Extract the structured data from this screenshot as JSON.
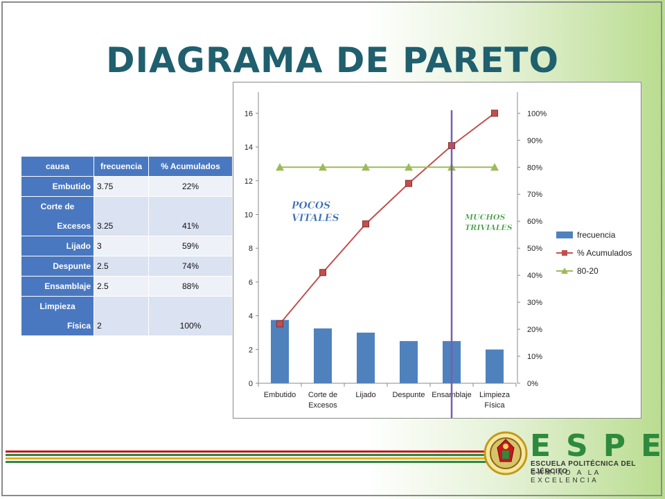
{
  "title": "DIAGRAMA DE PARETO",
  "table": {
    "headers": [
      "causa",
      "frecuencia",
      "% Acumulados"
    ],
    "rows": [
      {
        "causa_lines": [
          "Embutido"
        ],
        "frecuencia": "3.75",
        "acumulado": "22%"
      },
      {
        "causa_lines": [
          "Corte de",
          "Excesos"
        ],
        "frecuencia": "3.25",
        "acumulado": "41%"
      },
      {
        "causa_lines": [
          "Lijado"
        ],
        "frecuencia": "3",
        "acumulado": "59%"
      },
      {
        "causa_lines": [
          "Despunte"
        ],
        "frecuencia": "2.5",
        "acumulado": "74%"
      },
      {
        "causa_lines": [
          "Ensamblaje"
        ],
        "frecuencia": "2.5",
        "acumulado": "88%"
      },
      {
        "causa_lines": [
          "Limpieza",
          "Física"
        ],
        "frecuencia": "2",
        "acumulado": "100%"
      }
    ]
  },
  "chart_data": {
    "type": "bar",
    "categories": [
      [
        "Embutido"
      ],
      [
        "Corte de",
        "Excesos"
      ],
      [
        "Lijado"
      ],
      [
        "Despunte"
      ],
      [
        "Ensamblaje"
      ],
      [
        "Limpieza",
        "Física"
      ]
    ],
    "series": [
      {
        "name": "frecuencia",
        "type": "bar",
        "axis": "left",
        "values": [
          3.75,
          3.25,
          3,
          2.5,
          2.5,
          2
        ],
        "color": "#4f81bd"
      },
      {
        "name": "% Acumulados",
        "type": "line",
        "axis": "right",
        "values": [
          22,
          41,
          59,
          74,
          88,
          100
        ],
        "color": "#c0504d",
        "marker": "square"
      },
      {
        "name": "80-20",
        "type": "line",
        "axis": "right",
        "values": [
          80,
          80,
          80,
          80,
          80,
          80
        ],
        "color": "#9bbb59",
        "marker": "triangle"
      }
    ],
    "y_left": {
      "min": 0,
      "max": 17,
      "ticks": [
        "0",
        "2",
        "4",
        "6",
        "8",
        "10",
        "12",
        "14",
        "16"
      ]
    },
    "y_right": {
      "min": 0,
      "max": 106.25,
      "ticks": [
        "0%",
        "10%",
        "20%",
        "30%",
        "40%",
        "50%",
        "60%",
        "70%",
        "80%",
        "90%",
        "100%"
      ]
    },
    "vertical_line_at_category": 4,
    "vertical_line_color": "#7a5cb0",
    "annotations": [
      {
        "lines": [
          "POCOS",
          "VITALES"
        ],
        "color": "#3b6fb5"
      },
      {
        "lines": [
          "MUCHOS",
          "TRIVIALES"
        ],
        "color": "#3c9a3c"
      }
    ],
    "legend_position": "right"
  },
  "footer": {
    "letters": "ESPE",
    "line1": "ESCUELA POLITÉCNICA DEL EJÉRCITO",
    "line2": "CAMINO A LA EXCELENCIA",
    "stripe_colors": [
      "#c8161d",
      "#2e8a3c",
      "#e2b007",
      "#2e8a3c"
    ]
  }
}
